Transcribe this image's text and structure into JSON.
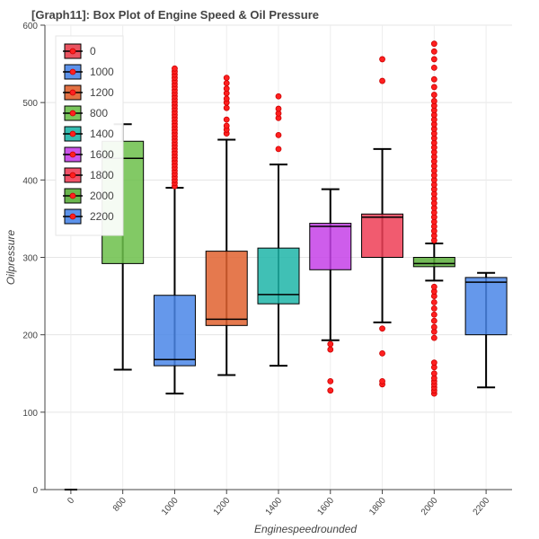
{
  "chart_data": {
    "type": "box",
    "title": "[Graph11]: Box Plot of Engine Speed & Oil Pressure",
    "xlabel": "Enginespeedrounded",
    "ylabel": "Oilpressure",
    "ylim": [
      0,
      600
    ],
    "yticks": [
      0,
      100,
      200,
      300,
      400,
      500,
      600
    ],
    "categories": [
      "0",
      "800",
      "1000",
      "1200",
      "1400",
      "1600",
      "1800",
      "2000",
      "2200"
    ],
    "grid": true,
    "legend": {
      "placement": "top-left",
      "entries": [
        "0",
        "1000",
        "1200",
        "800",
        "1400",
        "1600",
        "1800",
        "2000",
        "2200"
      ]
    },
    "series": [
      {
        "category": "0",
        "color": "#e8404f",
        "min": 0,
        "q1": 0,
        "median": 0,
        "q3": 0,
        "max": 0,
        "outliers": []
      },
      {
        "category": "800",
        "color": "#6cc04a",
        "min": 155,
        "q1": 292,
        "median": 428,
        "q3": 450,
        "max": 472,
        "outliers": []
      },
      {
        "category": "1000",
        "color": "#4a86e8",
        "min": 124,
        "q1": 160,
        "median": 168,
        "q3": 251,
        "max": 390,
        "outliers": [
          392,
          396,
          400,
          404,
          408,
          412,
          416,
          420,
          424,
          428,
          432,
          436,
          440,
          444,
          448,
          452,
          456,
          460,
          464,
          468,
          472,
          476,
          480,
          484,
          488,
          492,
          496,
          500,
          504,
          508,
          512,
          516,
          520,
          524,
          528,
          532,
          536,
          540,
          544
        ]
      },
      {
        "category": "1200",
        "color": "#e0622f",
        "min": 148,
        "q1": 212,
        "median": 220,
        "q3": 308,
        "max": 452,
        "outliers": [
          460,
          465,
          470,
          478,
          493,
          500,
          505,
          512,
          518,
          525,
          532
        ]
      },
      {
        "category": "1400",
        "color": "#1fb5a8",
        "min": 160,
        "q1": 240,
        "median": 252,
        "q3": 312,
        "max": 420,
        "outliers": [
          440,
          458,
          480,
          486,
          492,
          508
        ]
      },
      {
        "category": "1600",
        "color": "#c541e8",
        "min": 193,
        "q1": 284,
        "median": 340,
        "q3": 344,
        "max": 388,
        "outliers": [
          128,
          140,
          181,
          188
        ]
      },
      {
        "category": "1800",
        "color": "#ef3e56",
        "min": 216,
        "q1": 300,
        "median": 352,
        "q3": 356,
        "max": 440,
        "outliers": [
          136,
          140,
          176,
          208,
          528,
          556
        ]
      },
      {
        "category": "2000",
        "color": "#5aae3a",
        "min": 270,
        "q1": 288,
        "median": 292,
        "q3": 300,
        "max": 318,
        "outliers": [
          124,
          128,
          132,
          136,
          140,
          144,
          150,
          158,
          164,
          196,
          204,
          210,
          218,
          226,
          234,
          242,
          250,
          256,
          262,
          322,
          328,
          334,
          340,
          346,
          352,
          358,
          364,
          370,
          376,
          382,
          388,
          394,
          400,
          406,
          412,
          418,
          424,
          430,
          436,
          442,
          448,
          454,
          460,
          466,
          472,
          478,
          484,
          490,
          496,
          502,
          510,
          520,
          530,
          545,
          556,
          566,
          576
        ]
      },
      {
        "category": "2200",
        "color": "#4a86e8",
        "min": 132,
        "q1": 200,
        "median": 268,
        "q3": 274,
        "max": 280,
        "outliers": []
      }
    ]
  }
}
